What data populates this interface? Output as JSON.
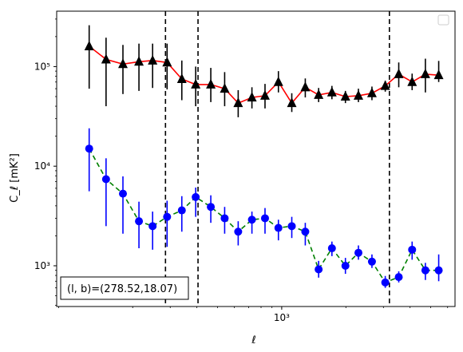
{
  "chart_data": {
    "type": "scatter",
    "title": "",
    "xlabel": "ℓ",
    "ylabel": "C_ℓ  [mK²]",
    "xscale": "log",
    "yscale": "log",
    "xlim": [
      88,
      6500
    ],
    "ylim": [
      390,
      360000
    ],
    "grid": false,
    "legend": {
      "placement": "top-right",
      "entries": []
    },
    "x_ticks": [
      {
        "value": 1000,
        "label": "10³"
      }
    ],
    "y_ticks": [
      {
        "value": 1000,
        "label": "10³"
      },
      {
        "value": 10000,
        "label": "10⁴"
      },
      {
        "value": 100000,
        "label": "10⁵"
      }
    ],
    "vlines": [
      285,
      405,
      3200
    ],
    "annotation": "(l, b)=(278.52,18.07)",
    "series": [
      {
        "marker": "triangle",
        "color": "#000000",
        "line_color": "#ff0000",
        "line_style": "solid",
        "errorbar_color": "#000000",
        "x": [
          125,
          150,
          180,
          214,
          248,
          290,
          340,
          395,
          465,
          540,
          625,
          725,
          835,
          965,
          1115,
          1290,
          1490,
          1720,
          1990,
          2290,
          2650,
          3060,
          3540,
          4090,
          4720,
          5450
        ],
        "y": [
          160000,
          118000,
          106000,
          112000,
          115000,
          110000,
          75000,
          66000,
          66000,
          60000,
          43000,
          49000,
          51000,
          70000,
          43000,
          62000,
          52000,
          55000,
          50000,
          51000,
          54000,
          64000,
          84000,
          70000,
          84000,
          82000
        ],
        "err_low": [
          60000,
          40000,
          53000,
          57000,
          61000,
          59000,
          46000,
          40000,
          44000,
          40000,
          31000,
          38000,
          38000,
          55000,
          35000,
          49000,
          44000,
          47000,
          43000,
          44000,
          46000,
          56000,
          62000,
          58000,
          55000,
          70000
        ],
        "err_high": [
          260000,
          195000,
          165000,
          170000,
          170000,
          170000,
          115000,
          100000,
          97000,
          88000,
          58000,
          62000,
          67000,
          90000,
          54000,
          76000,
          61000,
          64000,
          57000,
          60000,
          63000,
          72000,
          110000,
          85000,
          120000,
          114000
        ]
      },
      {
        "marker": "circle",
        "color": "#0000ff",
        "line_color": "#008000",
        "line_style": "dashed",
        "errorbar_color": "#0000ff",
        "x": [
          125,
          150,
          180,
          214,
          248,
          290,
          340,
          395,
          465,
          540,
          625,
          725,
          835,
          965,
          1115,
          1290,
          1490,
          1720,
          1990,
          2290,
          2650,
          3060,
          3540,
          4090,
          4720,
          5450
        ],
        "y": [
          15000,
          7400,
          5300,
          2800,
          2500,
          3100,
          3600,
          4900,
          3900,
          3000,
          2200,
          2900,
          3000,
          2400,
          2500,
          2200,
          920,
          1500,
          1000,
          1350,
          1100,
          680,
          770,
          1450,
          900,
          900
        ],
        "err_low": [
          5600,
          2500,
          2100,
          1500,
          1450,
          1550,
          2200,
          3100,
          2700,
          2100,
          1600,
          2100,
          2100,
          1800,
          1900,
          1600,
          760,
          1250,
          830,
          1150,
          950,
          600,
          680,
          1150,
          720,
          700
        ],
        "err_high": [
          24000,
          12000,
          7900,
          4400,
          3500,
          4500,
          5000,
          6100,
          5100,
          3900,
          2800,
          3500,
          3800,
          2900,
          3100,
          2700,
          1120,
          1750,
          1200,
          1600,
          1300,
          790,
          880,
          1750,
          1070,
          1300
        ]
      }
    ]
  }
}
